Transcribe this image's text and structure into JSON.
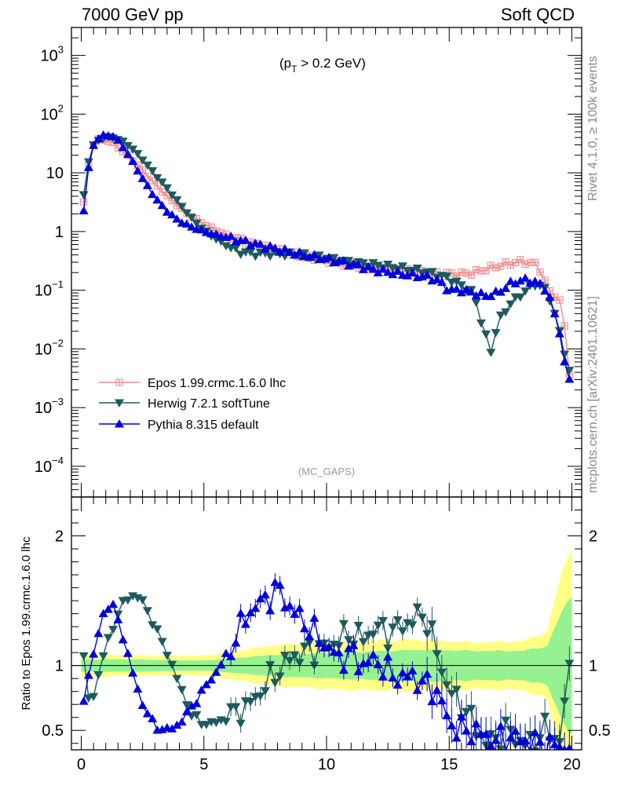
{
  "header": {
    "left_label": "7000 GeV pp",
    "right_label": "Soft QCD"
  },
  "side_labels": {
    "rivet": "Rivet 4.1.0, ≥ 100k events",
    "mcplots": "mcplots.cern.ch [arXiv:2401.10621]"
  },
  "chart_data": {
    "type": "scatter",
    "title": "(p_T > 0.2 GeV)",
    "title_main": "(p",
    "title_sub": "T",
    "title_tail": " > 0.2 GeV)",
    "watermark": "(MC_GAPS)",
    "xlabel": "",
    "xlim": [
      -0.4,
      20.4
    ],
    "x_ticks": [
      "0",
      "5",
      "10",
      "15",
      "20"
    ],
    "main_panel": {
      "yscale": "log",
      "ylim": [
        3e-05,
        3000
      ],
      "y_ticks": [
        {
          "base": "10",
          "exp": "3"
        },
        {
          "base": "10",
          "exp": "2"
        },
        {
          "base": "10",
          "exp": ""
        },
        {
          "base": "1",
          "exp": ""
        },
        {
          "base": "10",
          "exp": "−1"
        },
        {
          "base": "10",
          "exp": "−2"
        },
        {
          "base": "10",
          "exp": "−3"
        },
        {
          "base": "10",
          "exp": "−4"
        }
      ]
    },
    "ratio_panel": {
      "ylabel": "Ratio to Epos 1.99.crmc.1.6.0 lhc",
      "ylim": [
        0.35,
        2.3
      ],
      "y_ticks": [
        "2",
        "1",
        "0.5"
      ]
    },
    "series": [
      {
        "name": "Epos 1.99.crmc.1.6.0 lhc",
        "marker": "square-plus",
        "color": "#f08c8c",
        "curve": [
          [
            0.0,
            1.4
          ],
          [
            0.2,
            7
          ],
          [
            0.4,
            26
          ],
          [
            0.6,
            36
          ],
          [
            0.8,
            38
          ],
          [
            1.0,
            36
          ],
          [
            1.3,
            32
          ],
          [
            1.6,
            25
          ],
          [
            2.0,
            18
          ],
          [
            2.5,
            11
          ],
          [
            3.0,
            6.5
          ],
          [
            3.5,
            4.0
          ],
          [
            4.0,
            2.6
          ],
          [
            4.5,
            1.8
          ],
          [
            5.0,
            1.35
          ],
          [
            5.5,
            1.05
          ],
          [
            6.0,
            0.85
          ],
          [
            7.0,
            0.62
          ],
          [
            8.0,
            0.48
          ],
          [
            9.0,
            0.38
          ],
          [
            10.0,
            0.32
          ],
          [
            11.0,
            0.27
          ],
          [
            12.0,
            0.24
          ],
          [
            13.0,
            0.22
          ],
          [
            14.0,
            0.2
          ],
          [
            15.0,
            0.19
          ],
          [
            15.5,
            0.19
          ],
          [
            16.0,
            0.2
          ],
          [
            16.5,
            0.23
          ],
          [
            17.0,
            0.26
          ],
          [
            17.5,
            0.29
          ],
          [
            18.0,
            0.31
          ],
          [
            18.5,
            0.28
          ],
          [
            18.8,
            0.2
          ],
          [
            19.0,
            0.1
          ],
          [
            19.4,
            0.08
          ],
          [
            19.6,
            0.05
          ],
          [
            19.8,
            0.012
          ],
          [
            19.9,
            0.004
          ]
        ]
      },
      {
        "name": "Herwig 7.2.1 softTune",
        "marker": "triangle-down",
        "color": "#1e5a5f",
        "curve": [
          [
            0.0,
            1.8
          ],
          [
            0.2,
            10
          ],
          [
            0.4,
            25
          ],
          [
            0.6,
            34
          ],
          [
            0.8,
            38
          ],
          [
            1.0,
            40
          ],
          [
            1.3,
            40
          ],
          [
            1.6,
            36
          ],
          [
            2.0,
            28
          ],
          [
            2.5,
            17
          ],
          [
            3.0,
            9.5
          ],
          [
            3.5,
            5.5
          ],
          [
            4.0,
            3.0
          ],
          [
            4.5,
            1.7
          ],
          [
            5.0,
            1.05
          ],
          [
            5.5,
            0.75
          ],
          [
            6.0,
            0.55
          ],
          [
            6.5,
            0.45
          ],
          [
            7.0,
            0.42
          ],
          [
            8.0,
            0.42
          ],
          [
            9.0,
            0.4
          ],
          [
            10.0,
            0.35
          ],
          [
            11.0,
            0.3
          ],
          [
            12.0,
            0.27
          ],
          [
            13.0,
            0.24
          ],
          [
            14.0,
            0.21
          ],
          [
            15.0,
            0.16
          ],
          [
            15.5,
            0.12
          ],
          [
            16.0,
            0.09
          ],
          [
            16.3,
            0.03
          ],
          [
            16.7,
            0.009
          ],
          [
            17.0,
            0.03
          ],
          [
            17.5,
            0.06
          ],
          [
            18.0,
            0.09
          ],
          [
            18.5,
            0.13
          ],
          [
            19.0,
            0.1
          ],
          [
            19.5,
            0.02
          ],
          [
            19.9,
            0.004
          ]
        ]
      },
      {
        "name": "Pythia 8.315 default",
        "marker": "triangle-up",
        "color": "#0000dd",
        "curve": [
          [
            0.0,
            0.9
          ],
          [
            0.2,
            6
          ],
          [
            0.4,
            24
          ],
          [
            0.6,
            36
          ],
          [
            0.8,
            42
          ],
          [
            1.0,
            44
          ],
          [
            1.3,
            42
          ],
          [
            1.6,
            32
          ],
          [
            2.0,
            18
          ],
          [
            2.5,
            8
          ],
          [
            3.0,
            3.8
          ],
          [
            3.5,
            2.2
          ],
          [
            4.0,
            1.5
          ],
          [
            4.5,
            1.2
          ],
          [
            5.0,
            1.0
          ],
          [
            5.5,
            0.88
          ],
          [
            6.0,
            0.78
          ],
          [
            7.0,
            0.62
          ],
          [
            8.0,
            0.5
          ],
          [
            9.0,
            0.4
          ],
          [
            10.0,
            0.34
          ],
          [
            11.0,
            0.28
          ],
          [
            12.0,
            0.22
          ],
          [
            13.0,
            0.19
          ],
          [
            14.0,
            0.17
          ],
          [
            14.5,
            0.15
          ],
          [
            15.0,
            0.1
          ],
          [
            15.5,
            0.1
          ],
          [
            16.0,
            0.09
          ],
          [
            16.5,
            0.08
          ],
          [
            17.0,
            0.09
          ],
          [
            17.5,
            0.13
          ],
          [
            18.0,
            0.15
          ],
          [
            18.5,
            0.14
          ],
          [
            19.0,
            0.1
          ],
          [
            19.5,
            0.02
          ],
          [
            19.8,
            0.003
          ]
        ]
      }
    ],
    "ratio_band": {
      "inner_halfwidth": [
        [
          0.0,
          0.05
        ],
        [
          2.0,
          0.05
        ],
        [
          5.0,
          0.04
        ],
        [
          8.0,
          0.09
        ],
        [
          11.0,
          0.11
        ],
        [
          14.0,
          0.13
        ],
        [
          16.0,
          0.12
        ],
        [
          18.0,
          0.12
        ],
        [
          19.0,
          0.16
        ],
        [
          19.5,
          0.4
        ],
        [
          20.0,
          0.6
        ]
      ],
      "outer_halfwidth": [
        [
          0.0,
          0.1
        ],
        [
          2.0,
          0.08
        ],
        [
          5.0,
          0.08
        ],
        [
          8.0,
          0.17
        ],
        [
          11.0,
          0.2
        ],
        [
          14.0,
          0.21
        ],
        [
          16.0,
          0.19
        ],
        [
          18.0,
          0.2
        ],
        [
          19.0,
          0.28
        ],
        [
          19.5,
          0.7
        ],
        [
          20.0,
          1.0
        ]
      ]
    },
    "ratio_curves": {
      "Herwig 7.2.1 softTune": [
        [
          0.0,
          1.3
        ],
        [
          0.2,
          0.8
        ],
        [
          0.4,
          0.7
        ],
        [
          0.6,
          0.85
        ],
        [
          0.8,
          1.0
        ],
        [
          1.0,
          1.15
        ],
        [
          1.3,
          1.3
        ],
        [
          1.6,
          1.45
        ],
        [
          2.0,
          1.55
        ],
        [
          2.5,
          1.5
        ],
        [
          3.0,
          1.3
        ],
        [
          3.5,
          1.1
        ],
        [
          4.0,
          0.85
        ],
        [
          4.5,
          0.62
        ],
        [
          5.0,
          0.55
        ],
        [
          5.5,
          0.56
        ],
        [
          6.0,
          0.6
        ],
        [
          6.5,
          0.66
        ],
        [
          7.0,
          0.72
        ],
        [
          7.5,
          0.85
        ],
        [
          8.0,
          0.95
        ],
        [
          8.5,
          1.05
        ],
        [
          9.0,
          1.1
        ],
        [
          9.5,
          1.12
        ],
        [
          10.0,
          1.14
        ],
        [
          10.5,
          1.2
        ],
        [
          11.0,
          1.25
        ],
        [
          11.5,
          1.2
        ],
        [
          12.0,
          1.3
        ],
        [
          12.5,
          1.25
        ],
        [
          13.0,
          1.3
        ],
        [
          13.5,
          1.35
        ],
        [
          14.0,
          1.4
        ],
        [
          14.5,
          1.1
        ],
        [
          15.0,
          0.8
        ],
        [
          15.5,
          0.7
        ],
        [
          16.0,
          0.55
        ],
        [
          16.5,
          0.4
        ],
        [
          17.0,
          0.45
        ],
        [
          17.5,
          0.5
        ],
        [
          18.0,
          0.38
        ],
        [
          18.5,
          0.42
        ],
        [
          19.0,
          0.52
        ],
        [
          19.5,
          0.4
        ],
        [
          19.9,
          1.0
        ]
      ],
      "Pythia 8.315 default": [
        [
          0.0,
          0.65
        ],
        [
          0.2,
          0.85
        ],
        [
          0.4,
          1.0
        ],
        [
          0.6,
          1.15
        ],
        [
          0.8,
          1.35
        ],
        [
          1.0,
          1.45
        ],
        [
          1.3,
          1.45
        ],
        [
          1.6,
          1.3
        ],
        [
          2.0,
          1.0
        ],
        [
          2.5,
          0.7
        ],
        [
          3.0,
          0.53
        ],
        [
          3.5,
          0.5
        ],
        [
          4.0,
          0.55
        ],
        [
          4.5,
          0.68
        ],
        [
          5.0,
          0.82
        ],
        [
          5.5,
          0.95
        ],
        [
          6.0,
          1.1
        ],
        [
          6.5,
          1.3
        ],
        [
          7.0,
          1.45
        ],
        [
          7.5,
          1.5
        ],
        [
          8.0,
          1.6
        ],
        [
          8.5,
          1.45
        ],
        [
          9.0,
          1.35
        ],
        [
          9.5,
          1.25
        ],
        [
          10.0,
          1.15
        ],
        [
          10.5,
          1.05
        ],
        [
          11.0,
          1.1
        ],
        [
          11.5,
          1.0
        ],
        [
          12.0,
          1.05
        ],
        [
          12.5,
          0.95
        ],
        [
          13.0,
          0.9
        ],
        [
          13.5,
          0.92
        ],
        [
          14.0,
          0.85
        ],
        [
          14.5,
          0.8
        ],
        [
          15.0,
          0.55
        ],
        [
          15.5,
          0.5
        ],
        [
          16.0,
          0.5
        ],
        [
          16.5,
          0.45
        ],
        [
          17.0,
          0.42
        ],
        [
          17.5,
          0.45
        ],
        [
          18.0,
          0.42
        ],
        [
          18.5,
          0.4
        ],
        [
          19.0,
          0.38
        ]
      ]
    }
  }
}
